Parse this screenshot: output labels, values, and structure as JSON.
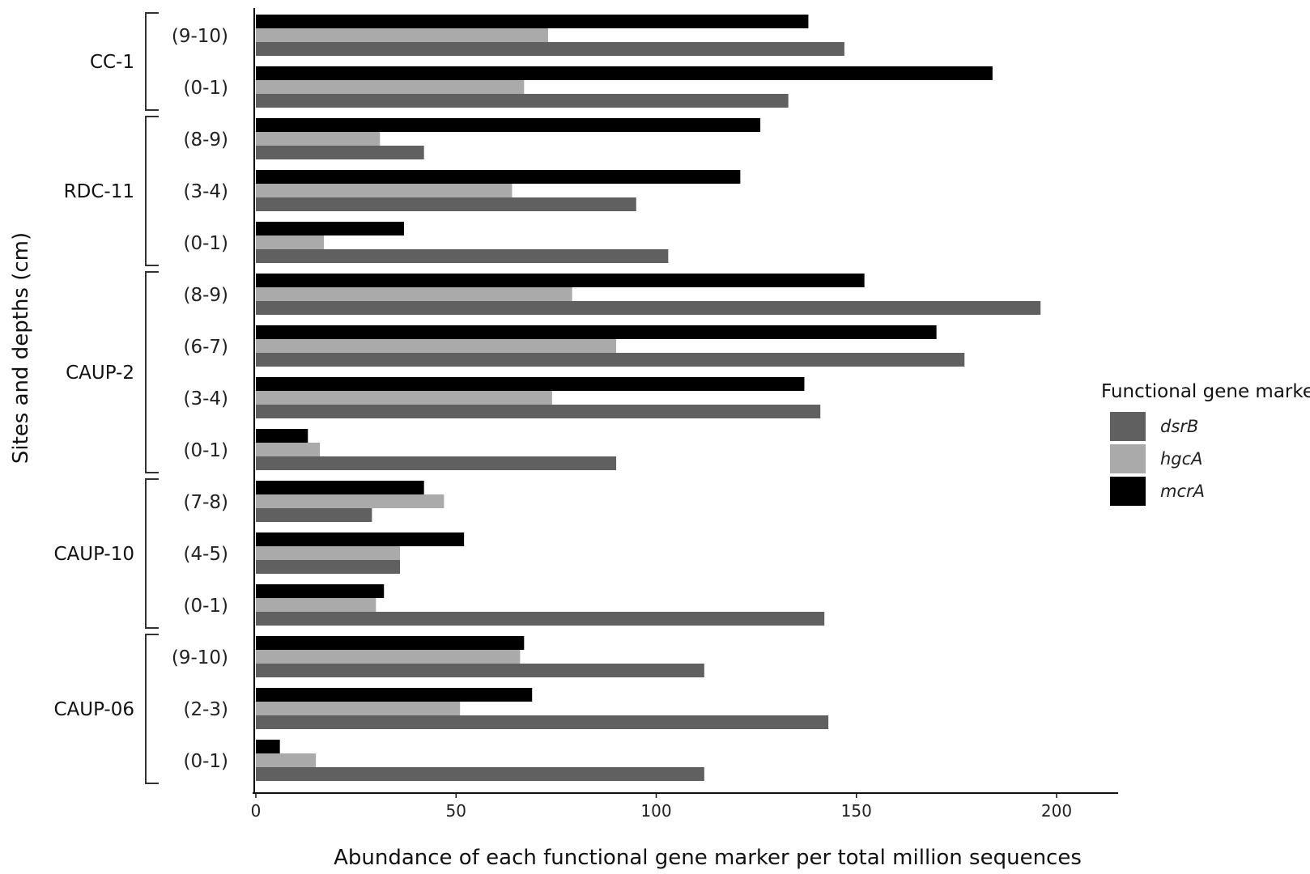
{
  "chart_data": {
    "type": "bar",
    "orientation": "horizontal",
    "xlabel": "Abundance of each functional gene marker per total million sequences",
    "ylabel": "Sites and depths (cm)",
    "xlim": [
      0,
      215
    ],
    "xticks": [
      0,
      50,
      100,
      150,
      200
    ],
    "legend": {
      "title": "Functional gene marker",
      "position": "right",
      "entries": [
        "dsrB",
        "hgcA",
        "mcrA"
      ]
    },
    "colors": {
      "dsrB": "#606060",
      "hgcA": "#aaaaaa",
      "mcrA": "#000000"
    },
    "groups": [
      {
        "site": "CC-1",
        "rows": [
          {
            "depth": "(9-10)",
            "mcrA": 138,
            "hgcA": 73,
            "dsrB": 147
          },
          {
            "depth": "(0-1)",
            "mcrA": 184,
            "hgcA": 67,
            "dsrB": 133
          }
        ]
      },
      {
        "site": "RDC-11",
        "rows": [
          {
            "depth": "(8-9)",
            "mcrA": 126,
            "hgcA": 31,
            "dsrB": 42
          },
          {
            "depth": "(3-4)",
            "mcrA": 121,
            "hgcA": 64,
            "dsrB": 95
          },
          {
            "depth": "(0-1)",
            "mcrA": 37,
            "hgcA": 17,
            "dsrB": 103
          }
        ]
      },
      {
        "site": "CAUP-2",
        "rows": [
          {
            "depth": "(8-9)",
            "mcrA": 152,
            "hgcA": 79,
            "dsrB": 196
          },
          {
            "depth": "(6-7)",
            "mcrA": 170,
            "hgcA": 90,
            "dsrB": 177
          },
          {
            "depth": "(3-4)",
            "mcrA": 137,
            "hgcA": 74,
            "dsrB": 141
          },
          {
            "depth": "(0-1)",
            "mcrA": 13,
            "hgcA": 16,
            "dsrB": 90
          }
        ]
      },
      {
        "site": "CAUP-10",
        "rows": [
          {
            "depth": "(7-8)",
            "mcrA": 42,
            "hgcA": 47,
            "dsrB": 29
          },
          {
            "depth": "(4-5)",
            "mcrA": 52,
            "hgcA": 36,
            "dsrB": 36
          },
          {
            "depth": "(0-1)",
            "mcrA": 32,
            "hgcA": 30,
            "dsrB": 142
          }
        ]
      },
      {
        "site": "CAUP-06",
        "rows": [
          {
            "depth": "(9-10)",
            "mcrA": 67,
            "hgcA": 66,
            "dsrB": 112
          },
          {
            "depth": "(2-3)",
            "mcrA": 69,
            "hgcA": 51,
            "dsrB": 143
          },
          {
            "depth": "(0-1)",
            "mcrA": 6,
            "hgcA": 15,
            "dsrB": 112
          }
        ]
      }
    ]
  }
}
